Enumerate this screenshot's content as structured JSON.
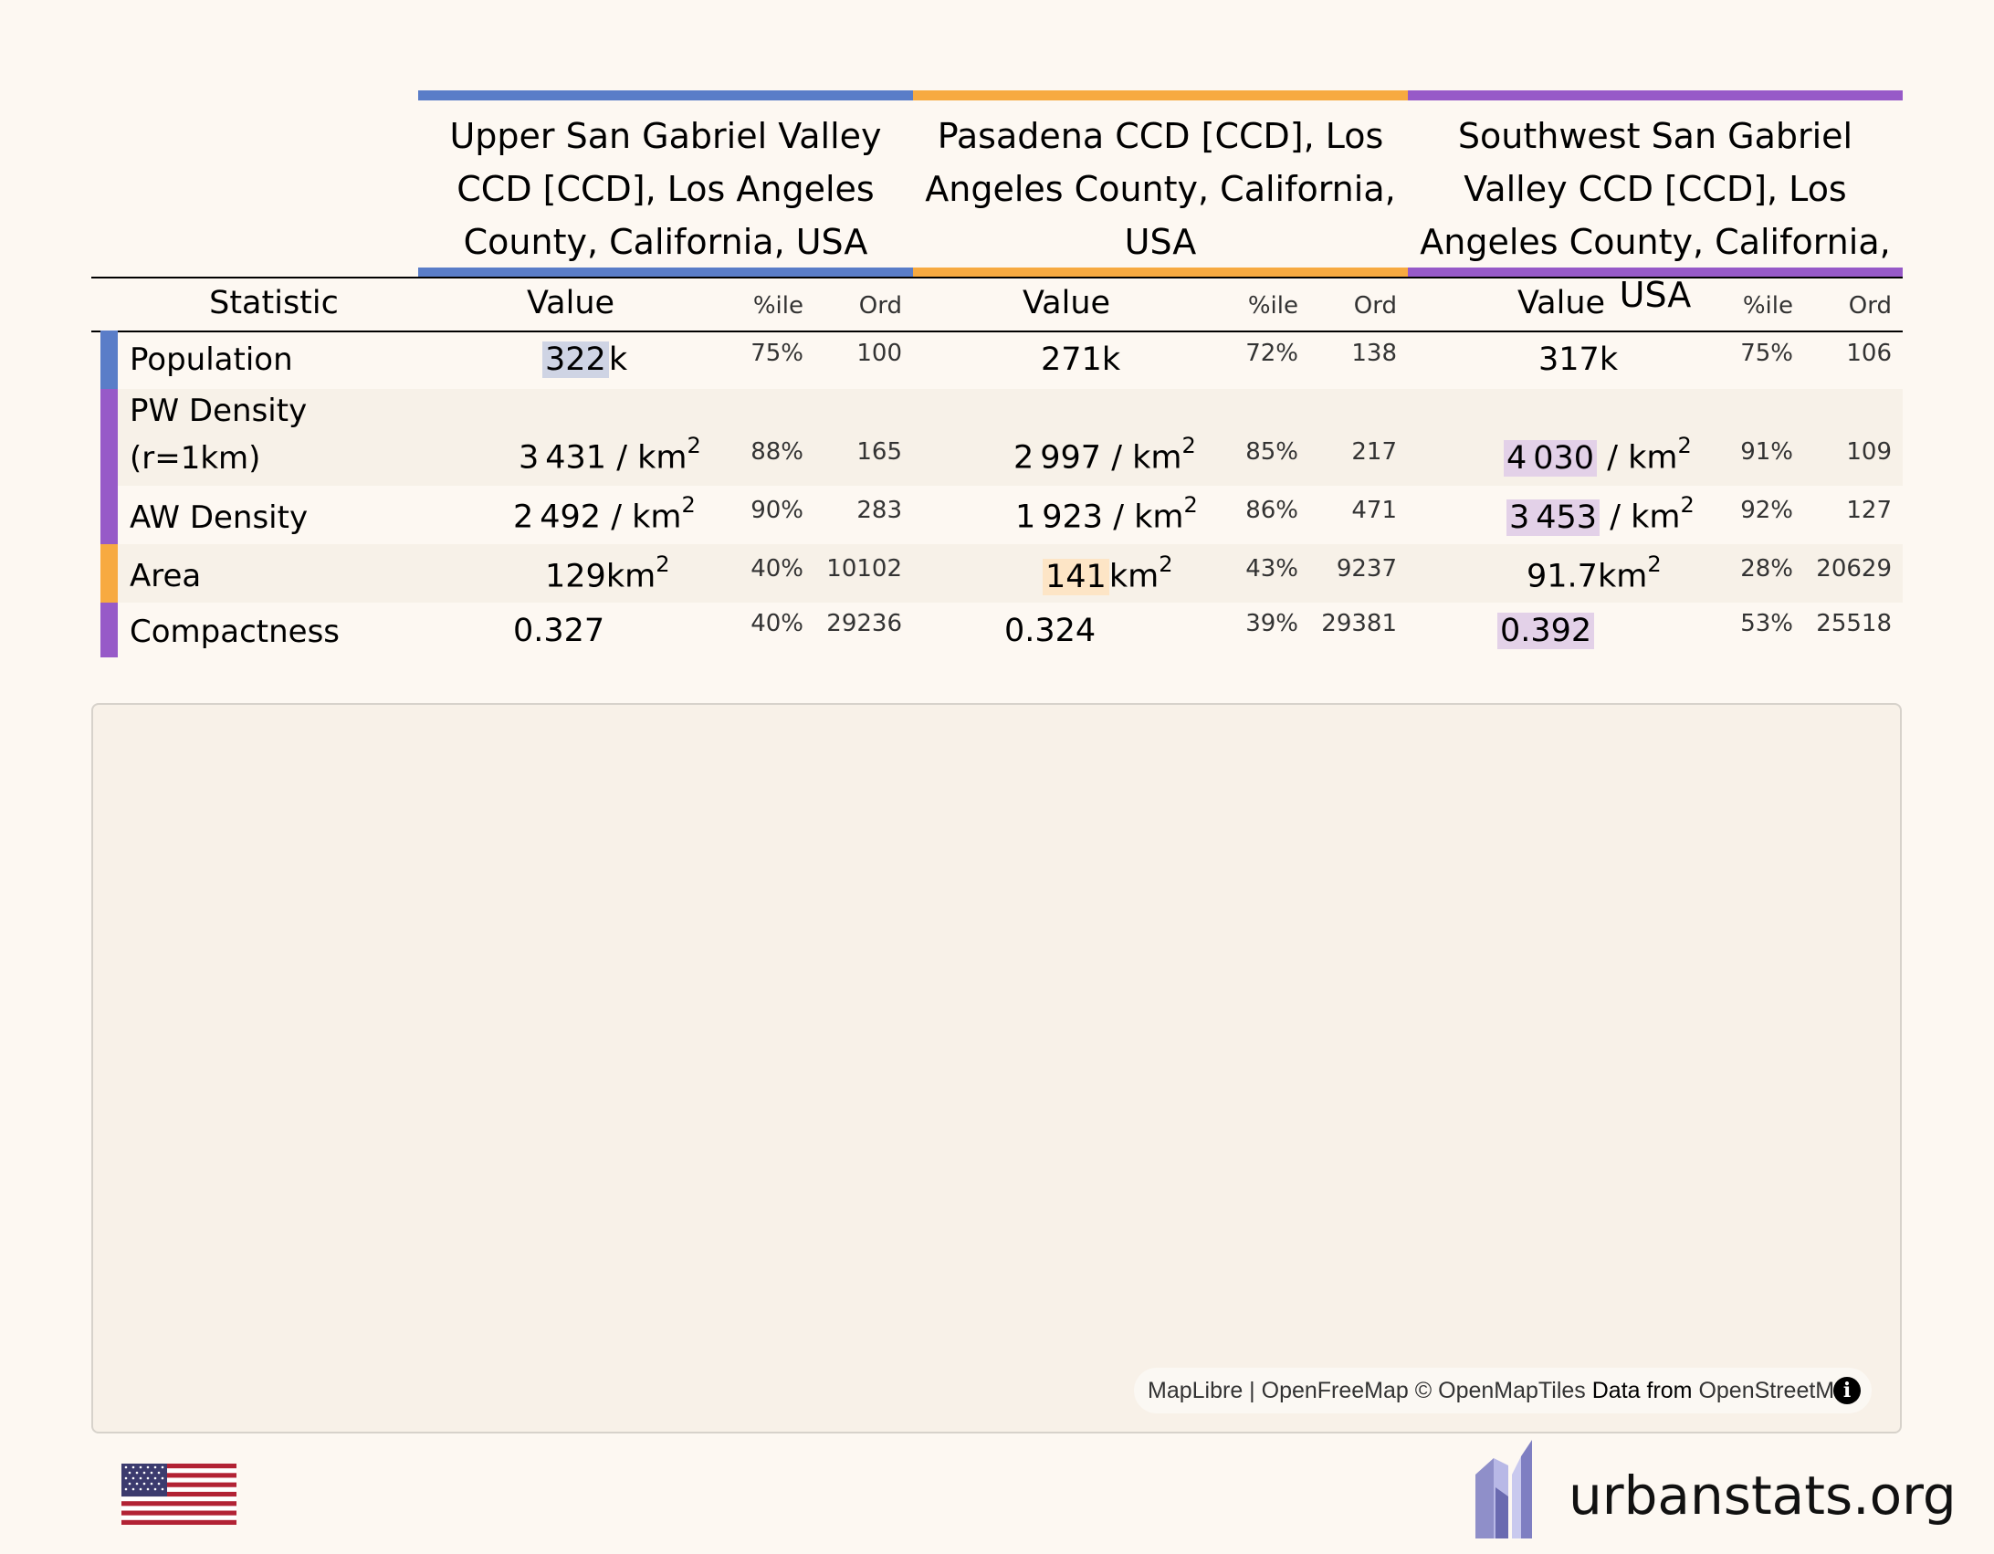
{
  "regions": [
    {
      "name": "Upper San Gabriel Valley CCD [CCD], Los Angeles County, California, USA",
      "color": "#5a7dc8"
    },
    {
      "name": "Pasadena CCD [CCD], Los Angeles County, California, USA",
      "color": "#f7aa41"
    },
    {
      "name": "Southwest San Gabriel Valley CCD [CCD], Los Angeles County, California, USA",
      "color": "#975ac8"
    }
  ],
  "headers": {
    "statistic": "Statistic",
    "value": "Value",
    "percentile": "%ile",
    "ordinal": "Ord"
  },
  "rows": [
    {
      "label": "Population",
      "label2": "",
      "strip_color": "#5a7dc8",
      "band": "#fdf8f2",
      "cells": [
        {
          "num": "322",
          "unit": "k",
          "sup": "",
          "pct": "75%",
          "ord": "100"
        },
        {
          "num": "271",
          "unit": "k",
          "sup": "",
          "pct": "72%",
          "ord": "138"
        },
        {
          "num": "317",
          "unit": "k",
          "sup": "",
          "pct": "75%",
          "ord": "106"
        }
      ]
    },
    {
      "label": "PW Density",
      "label2": "(r=1km)",
      "strip_color": "#975ac8",
      "band": "#f7f1e8",
      "cells": [
        {
          "num": "3 431",
          "unit": " / km",
          "sup": "2",
          "pct": "88%",
          "ord": "165"
        },
        {
          "num": "2 997",
          "unit": " / km",
          "sup": "2",
          "pct": "85%",
          "ord": "217"
        },
        {
          "num": "4 030",
          "unit": " / km",
          "sup": "2",
          "pct": "91%",
          "ord": "109"
        }
      ]
    },
    {
      "label": "AW Density",
      "label2": "",
      "strip_color": "#975ac8",
      "band": "#fdf8f2",
      "cells": [
        {
          "num": "2 492",
          "unit": " / km",
          "sup": "2",
          "pct": "90%",
          "ord": "283"
        },
        {
          "num": "1 923",
          "unit": " / km",
          "sup": "2",
          "pct": "86%",
          "ord": "471"
        },
        {
          "num": "3 453",
          "unit": " / km",
          "sup": "2",
          "pct": "92%",
          "ord": "127"
        }
      ]
    },
    {
      "label": "Area",
      "label2": "",
      "strip_color": "#f7aa41",
      "band": "#f7f1e8",
      "cells": [
        {
          "num": "129",
          "unit": "km",
          "sup": "2",
          "pct": "40%",
          "ord": "10102"
        },
        {
          "num": "141",
          "unit": "km",
          "sup": "2",
          "pct": "43%",
          "ord": "9237"
        },
        {
          "num": "91.7",
          "unit": "km",
          "sup": "2",
          "pct": "28%",
          "ord": "20629"
        }
      ]
    },
    {
      "label": "Compactness",
      "label2": "",
      "strip_color": "#975ac8",
      "band": "#fdf8f2",
      "cells": [
        {
          "num": "0.327",
          "unit": "",
          "sup": "",
          "pct": "40%",
          "ord": "29236"
        },
        {
          "num": "0.324",
          "unit": "",
          "sup": "",
          "pct": "39%",
          "ord": "29381"
        },
        {
          "num": "0.392",
          "unit": "",
          "sup": "",
          "pct": "53%",
          "ord": "25518"
        }
      ]
    }
  ],
  "highlights": {
    "blue": "#cfd4e4",
    "orange": "#fde5c6",
    "purple": "#e3d1e8"
  },
  "map": {
    "attribution_maplibre": "MapLibre",
    "attribution_sep1": " | ",
    "attribution_openfreemap": "OpenFreeMap",
    "attribution_copy": " © ",
    "attribution_openmaptiles": "OpenMapTiles",
    "attribution_datafrom": " Data from ",
    "attribution_osm": "OpenStreetMap",
    "info_icon": "i"
  },
  "footer": {
    "site": "urbanstats.org",
    "flag": "us-flag-icon",
    "logo": "urbanstats-logo-icon"
  }
}
